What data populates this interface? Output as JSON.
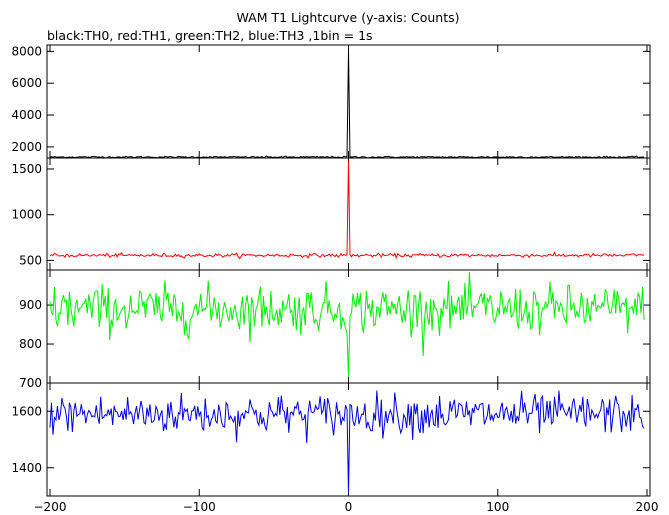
{
  "title": "WAM T1 Lightcurve (y-axis: Counts)",
  "subtitle": "black:TH0, red:TH1, green:TH2, blue:TH3 ,1bin = 1s",
  "colors": {
    "TH0": "#000000",
    "TH1": "#ff0000",
    "TH2": "#00ee00",
    "TH3": "#0000dd"
  },
  "chart_data": {
    "type": "line",
    "title": "WAM T1 Lightcurve (y-axis: Counts)",
    "subtitle": "black:TH0, red:TH1, green:TH2, blue:TH3 ,1bin = 1s",
    "xlabel": "",
    "ylabel": "",
    "grid": false,
    "xlim": [
      -202,
      202
    ],
    "xticks": [
      -200,
      -100,
      0,
      100,
      200
    ],
    "xtick_labels": [
      "−200",
      "−100",
      "0",
      "100",
      "200"
    ],
    "panels": [
      {
        "series": "TH0",
        "color": "#000000",
        "ylim": [
          1300,
          8400
        ],
        "yticks": [
          2000,
          4000,
          6000,
          8000
        ],
        "ytick_labels": [
          "2000",
          "4000",
          "6000",
          "8000"
        ],
        "baseline": 1360,
        "noise": 25,
        "peak": {
          "x": 0,
          "value": 8050
        }
      },
      {
        "series": "TH1",
        "color": "#ff0000",
        "ylim": [
          395,
          1620
        ],
        "yticks": [
          500,
          1000,
          1500
        ],
        "ytick_labels": [
          "500",
          "1000",
          "1500"
        ],
        "baseline": 555,
        "noise": 10,
        "peak": {
          "x": 0,
          "value": 1590
        }
      },
      {
        "series": "TH2",
        "color": "#00ee00",
        "ylim": [
          700,
          990
        ],
        "yticks": [
          700,
          800,
          900
        ],
        "ytick_labels": [
          "700",
          "800",
          "900"
        ],
        "baseline": 890,
        "noise": 30,
        "peak": {
          "x": 0,
          "value": 715
        }
      },
      {
        "series": "TH3",
        "color": "#0000dd",
        "ylim": [
          1300,
          1700
        ],
        "yticks": [
          1400,
          1600
        ],
        "ytick_labels": [
          "1400",
          "1600"
        ],
        "baseline": 1590,
        "noise": 35,
        "peak": {
          "x": 0,
          "value": 1310
        }
      }
    ]
  }
}
